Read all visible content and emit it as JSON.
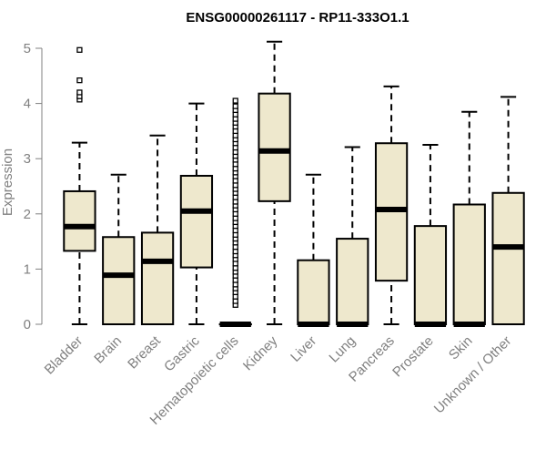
{
  "chart_data": {
    "type": "boxplot",
    "title": "ENSG00000261117 - RP11-333O1.1",
    "xlabel": "",
    "ylabel": "Expression",
    "ylim": [
      0,
      5.15
    ],
    "yticks": [
      0,
      1,
      2,
      3,
      4,
      5
    ],
    "ytick_labels": [
      "0",
      "1",
      "2",
      "3",
      "4",
      "5"
    ],
    "grid": false,
    "legend": "none",
    "colors": {
      "box_fill": "#EEE8CD",
      "stroke": "#000000",
      "axis_text": "#808080"
    },
    "categories": [
      "Bladder",
      "Brain",
      "Breast",
      "Gastric",
      "Hematopoietic cells",
      "Kidney",
      "Liver",
      "Lung",
      "Pancreas",
      "Prostate",
      "Skin",
      "Unknown / Other"
    ],
    "boxes": [
      {
        "category": "Bladder",
        "whisker_low": 0,
        "q1": 1.33,
        "median": 1.77,
        "q3": 2.41,
        "whisker_high": 3.29,
        "outliers": [
          4.07,
          4.13,
          4.2,
          4.42,
          4.97
        ]
      },
      {
        "category": "Brain",
        "whisker_low": 0,
        "q1": 0,
        "median": 0.89,
        "q3": 1.58,
        "whisker_high": 2.71,
        "outliers": []
      },
      {
        "category": "Breast",
        "whisker_low": 0,
        "q1": 0,
        "median": 1.14,
        "q3": 1.66,
        "whisker_high": 3.42,
        "outliers": []
      },
      {
        "category": "Gastric",
        "whisker_low": 0,
        "q1": 1.03,
        "median": 2.05,
        "q3": 2.69,
        "whisker_high": 4.0,
        "outliers": []
      },
      {
        "category": "Hematopoietic cells",
        "whisker_low": 0,
        "q1": 0,
        "median": 0,
        "q3": 0,
        "whisker_high": 0,
        "outliers": [
          0.35,
          0.42,
          0.5,
          0.58,
          0.65,
          0.72,
          0.8,
          0.88,
          0.95,
          1.02,
          1.1,
          1.18,
          1.25,
          1.32,
          1.4,
          1.48,
          1.55,
          1.62,
          1.7,
          1.78,
          1.85,
          1.92,
          2.0,
          2.08,
          2.15,
          2.22,
          2.3,
          2.38,
          2.45,
          2.52,
          2.6,
          2.68,
          2.75,
          2.82,
          2.9,
          2.98,
          3.05,
          3.12,
          3.2,
          3.28,
          3.35,
          3.42,
          3.5,
          3.58,
          3.65,
          3.72,
          3.8,
          3.88,
          3.95,
          4.05
        ]
      },
      {
        "category": "Kidney",
        "whisker_low": 0,
        "q1": 2.23,
        "median": 3.14,
        "q3": 4.18,
        "whisker_high": 5.12,
        "outliers": []
      },
      {
        "category": "Liver",
        "whisker_low": 0,
        "q1": 0,
        "median": 0,
        "q3": 1.16,
        "whisker_high": 2.71,
        "outliers": []
      },
      {
        "category": "Lung",
        "whisker_low": 0,
        "q1": 0,
        "median": 0,
        "q3": 1.55,
        "whisker_high": 3.21,
        "outliers": []
      },
      {
        "category": "Pancreas",
        "whisker_low": 0,
        "q1": 0.79,
        "median": 2.08,
        "q3": 3.28,
        "whisker_high": 4.31,
        "outliers": []
      },
      {
        "category": "Prostate",
        "whisker_low": 0,
        "q1": 0,
        "median": 0,
        "q3": 1.78,
        "whisker_high": 3.25,
        "outliers": []
      },
      {
        "category": "Skin",
        "whisker_low": 0,
        "q1": 0,
        "median": 0,
        "q3": 2.17,
        "whisker_high": 3.85,
        "outliers": []
      },
      {
        "category": "Unknown / Other",
        "whisker_low": 0,
        "q1": 0,
        "median": 1.4,
        "q3": 2.38,
        "whisker_high": 4.12,
        "outliers": []
      }
    ]
  }
}
